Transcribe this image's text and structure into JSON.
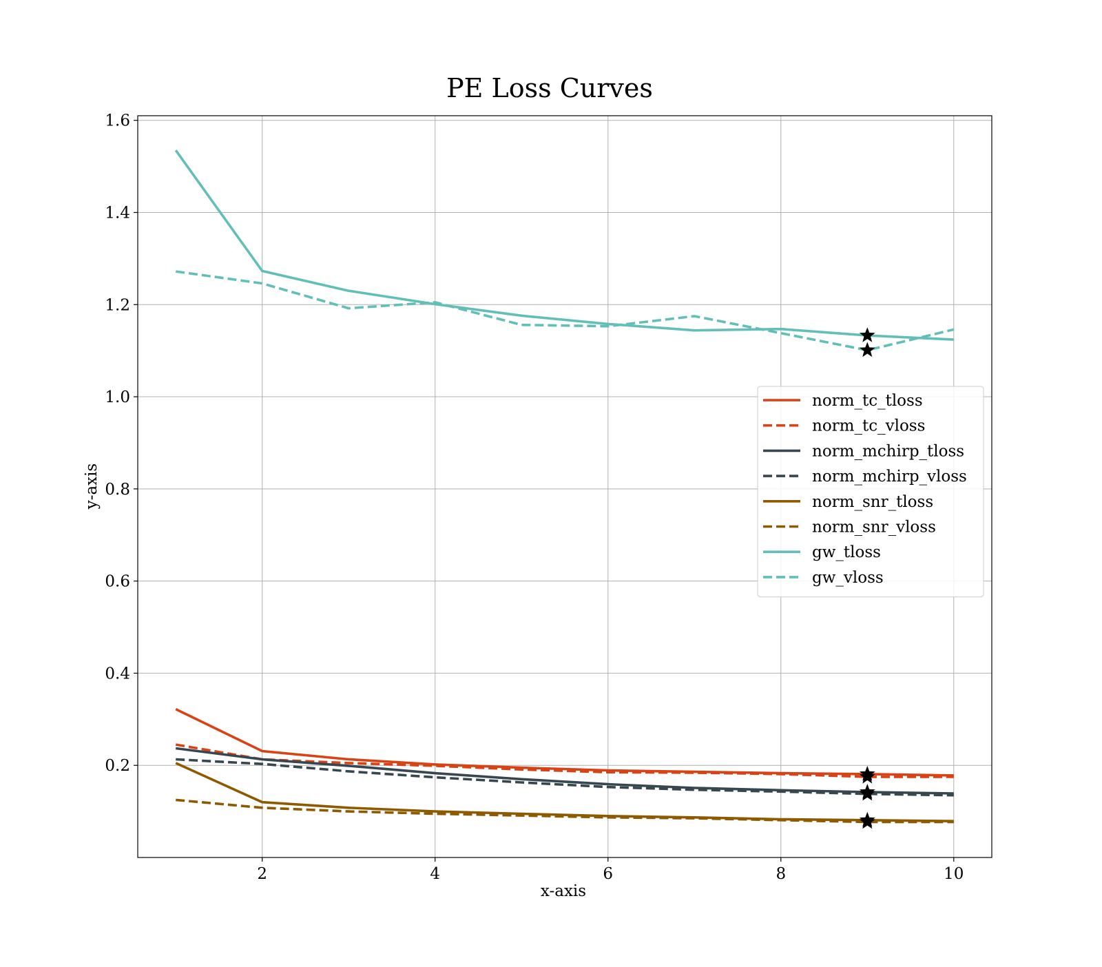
{
  "chart_data": {
    "type": "line",
    "title": "PE Loss Curves",
    "xlabel": "x-axis",
    "ylabel": "y-axis",
    "xlim": [
      0.56,
      10.44
    ],
    "ylim": [
      0.0,
      1.61
    ],
    "xticks": [
      2,
      4,
      6,
      8,
      10
    ],
    "yticks": [
      0.2,
      0.4,
      0.6,
      0.8,
      1.0,
      1.2,
      1.4,
      1.6
    ],
    "grid": true,
    "legend_position": "right",
    "x": [
      1,
      2,
      3,
      4,
      5,
      6,
      7,
      8,
      9,
      10
    ],
    "series": [
      {
        "name": "norm_tc_tloss",
        "color": "#d84315",
        "dash": "solid",
        "values": [
          0.322,
          0.231,
          0.213,
          0.202,
          0.195,
          0.189,
          0.186,
          0.183,
          0.181,
          0.178
        ],
        "best_marker": {
          "x": 9,
          "y": 0.181
        }
      },
      {
        "name": "norm_tc_vloss",
        "color": "#d84315",
        "dash": "dashed",
        "values": [
          0.245,
          0.213,
          0.205,
          0.199,
          0.191,
          0.185,
          0.184,
          0.181,
          0.175,
          0.175
        ],
        "best_marker": {
          "x": 9,
          "y": 0.175
        }
      },
      {
        "name": "norm_mchirp_tloss",
        "color": "#37474f",
        "dash": "solid",
        "values": [
          0.237,
          0.213,
          0.199,
          0.183,
          0.17,
          0.159,
          0.151,
          0.146,
          0.142,
          0.139
        ],
        "best_marker": {
          "x": 9,
          "y": 0.142
        }
      },
      {
        "name": "norm_mchirp_vloss",
        "color": "#37474f",
        "dash": "dashed",
        "values": [
          0.213,
          0.203,
          0.187,
          0.174,
          0.163,
          0.153,
          0.147,
          0.143,
          0.138,
          0.135
        ],
        "best_marker": {
          "x": 9,
          "y": 0.138
        }
      },
      {
        "name": "norm_snr_tloss",
        "color": "#8d5a00",
        "dash": "solid",
        "values": [
          0.205,
          0.12,
          0.108,
          0.1,
          0.095,
          0.09,
          0.087,
          0.083,
          0.081,
          0.079
        ],
        "best_marker": {
          "x": 9,
          "y": 0.081
        }
      },
      {
        "name": "norm_snr_vloss",
        "color": "#8d5a00",
        "dash": "dashed",
        "values": [
          0.125,
          0.108,
          0.1,
          0.095,
          0.091,
          0.087,
          0.085,
          0.081,
          0.077,
          0.077
        ],
        "best_marker": {
          "x": 9,
          "y": 0.077
        }
      },
      {
        "name": "gw_tloss",
        "color": "#62bfb7",
        "dash": "solid",
        "values": [
          1.535,
          1.273,
          1.23,
          1.201,
          1.176,
          1.158,
          1.144,
          1.147,
          1.133,
          1.124
        ],
        "best_marker": {
          "x": 9,
          "y": 1.133
        }
      },
      {
        "name": "gw_vloss",
        "color": "#62bfb7",
        "dash": "dashed",
        "values": [
          1.272,
          1.246,
          1.192,
          1.205,
          1.156,
          1.153,
          1.175,
          1.138,
          1.101,
          1.146
        ],
        "best_marker": {
          "x": 9,
          "y": 1.101
        }
      }
    ]
  }
}
